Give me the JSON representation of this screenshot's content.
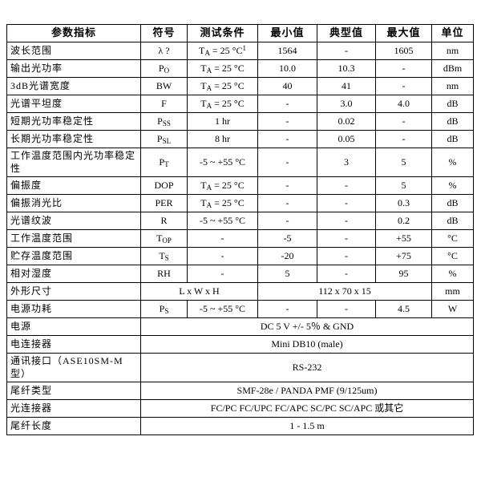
{
  "page": {
    "background": "#ffffff",
    "text_color": "#000000",
    "border_color": "#000000"
  },
  "table": {
    "columns": [
      "参数指标",
      "符号",
      "测试条件",
      "最小值",
      "典型值",
      "最大值",
      "单位"
    ],
    "rows": [
      [
        "波长范围",
        "λ ?",
        "T_{A} = 25 °C^{1}",
        "1564",
        "-",
        "1605",
        "nm"
      ],
      [
        "输出光功率",
        "P_{O}",
        "T_{A} = 25 °C",
        "10.0",
        "10.3",
        "-",
        "dBm"
      ],
      [
        "3dB光谱宽度",
        "BW",
        "T_{A} = 25 °C",
        "40",
        "41",
        "-",
        "nm"
      ],
      [
        "光谱平坦度",
        "F",
        "T_{A} = 25 °C",
        "-",
        "3.0",
        "4.0",
        "dB"
      ],
      [
        "短期光功率稳定性",
        "P_{SS}",
        "1 hr",
        "-",
        "0.02",
        "-",
        "dB"
      ],
      [
        "长期光功率稳定性",
        "P_{SL}",
        "8 hr",
        "-",
        "0.05",
        "-",
        "dB"
      ],
      [
        "工作温度范围内光功率稳定性",
        "P_{T}",
        "-5 ~ +55 °C",
        "-",
        "3",
        "5",
        "%"
      ],
      [
        "偏振度",
        "DOP",
        "T_{A} = 25 °C",
        "-",
        "-",
        "5",
        "%"
      ],
      [
        "偏振消光比",
        "PER",
        "T_{A} = 25 °C",
        "-",
        "-",
        "0.3",
        "dB"
      ],
      [
        "光谱纹波",
        "R",
        "-5 ~ +55 °C",
        "-",
        "-",
        "0.2",
        "dB"
      ],
      [
        "工作温度范围",
        "T_{OP}",
        "-",
        "-5",
        "-",
        "+55",
        "°C"
      ],
      [
        "贮存温度范围",
        "T_{S}",
        "-",
        "-20",
        "-",
        "+75",
        "°C"
      ],
      [
        "相对湿度",
        "RH",
        "-",
        "5",
        "-",
        "95",
        "%"
      ],
      [
        "外形尺寸",
        {
          "t": "L x W x H",
          "span": 2
        },
        {
          "t": "112 x 70 x 15",
          "span": 3
        },
        "mm"
      ],
      [
        "电源功耗",
        "P_{S}",
        "-5 ~ +55 °C",
        "-",
        "-",
        "4.5",
        "W"
      ],
      [
        "电源",
        {
          "t": "DC 5 V +/- 5％  & GND",
          "span": 6
        }
      ],
      [
        "电连接器",
        {
          "t": "Mini DB10 (male)",
          "span": 6
        }
      ],
      [
        "通讯接口（ASE10SM-M型）",
        {
          "t": "RS-232",
          "span": 6
        }
      ],
      [
        "尾纤类型",
        {
          "t": "SMF-28e / PANDA PMF (9/125um)",
          "span": 6
        }
      ],
      [
        "光连接器",
        {
          "t": "FC/PC FC/UPC FC/APC SC/PC SC/APC 或其它",
          "span": 6
        }
      ],
      [
        "尾纤长度",
        {
          "t": "1 - 1.5 m",
          "span": 6
        }
      ]
    ]
  }
}
